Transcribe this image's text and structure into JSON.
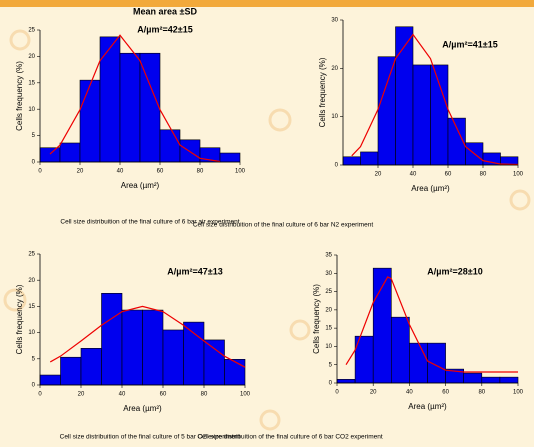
{
  "chart_data": [
    {
      "type": "histogram",
      "title": "Mean area ±SD",
      "annotation": "A/µm²=42±15",
      "x_label": "Area (µm²)",
      "y_label": "Cells frequency (%)",
      "caption": "Cell size distribuition of the final culture of 6 bar air experiment",
      "bins": [
        0,
        10,
        20,
        30,
        40,
        50,
        60,
        70,
        80,
        90,
        100
      ],
      "values": [
        2.7,
        3.6,
        15.5,
        23.7,
        20.6,
        20.6,
        6.1,
        4.2,
        2.7,
        1.7
      ],
      "color": "#0000ee",
      "curve": {
        "color": "#ee0000",
        "x": [
          5,
          10,
          20,
          30,
          40,
          50,
          60,
          70,
          80,
          90
        ],
        "values": [
          1.5,
          3.2,
          9.9,
          19.2,
          24,
          19.2,
          9.9,
          3.2,
          0.7,
          0.1
        ]
      },
      "xlim": [
        0,
        100
      ],
      "xticks": [
        0,
        20,
        40,
        60,
        80,
        100
      ],
      "ylim": [
        0,
        25
      ],
      "yticks": [
        0,
        5,
        10,
        15,
        20,
        25
      ]
    },
    {
      "type": "histogram",
      "annotation": "A/µm²=41±15",
      "x_label": "Area (µm²)",
      "y_label": "Cells frequency (%)",
      "caption": "Cell size distribuition of the final culture of 6 bar N2 experiment",
      "bins": [
        0,
        10,
        20,
        30,
        40,
        50,
        60,
        70,
        80,
        90,
        100
      ],
      "values": [
        1.7,
        2.7,
        22.4,
        28.6,
        20.7,
        20.7,
        9.7,
        4.6,
        2.5,
        1.7
      ],
      "color": "#0000ee",
      "curve": {
        "color": "#ee0000",
        "x": [
          5,
          10,
          20,
          30,
          40,
          50,
          60,
          70,
          80,
          90,
          100
        ],
        "values": [
          1.9,
          3.8,
          11.5,
          22,
          27,
          22,
          11.5,
          3.8,
          0.9,
          0.2,
          0.1
        ]
      },
      "xlim": [
        0,
        100
      ],
      "xticks": [
        20,
        40,
        60,
        80,
        100
      ],
      "ylim": [
        0,
        30
      ],
      "yticks": [
        0,
        10,
        20,
        30
      ]
    },
    {
      "type": "histogram",
      "annotation": "A/µm²=47±13",
      "x_label": "Area (µm²)",
      "y_label": "Cells frequency (%)",
      "caption": "Cell size distribuition of the final culture of 5 bar O2 experiment",
      "bins": [
        0,
        10,
        20,
        30,
        40,
        50,
        60,
        70,
        80,
        90,
        100
      ],
      "values": [
        1.9,
        5.3,
        7.0,
        17.5,
        14.3,
        14.3,
        10.5,
        12.0,
        8.6,
        4.9
      ],
      "color": "#0000ee",
      "curve": {
        "color": "#ee0000",
        "x": [
          5,
          10,
          20,
          30,
          40,
          50,
          60,
          70,
          80,
          90,
          100
        ],
        "values": [
          4.4,
          5.5,
          8.4,
          11.4,
          14,
          15,
          14,
          11.4,
          8.4,
          5.5,
          3.4
        ]
      },
      "xlim": [
        0,
        100
      ],
      "xticks": [
        0,
        20,
        40,
        60,
        80,
        100
      ],
      "ylim": [
        0,
        25
      ],
      "yticks": [
        0,
        5,
        10,
        15,
        20,
        25
      ]
    },
    {
      "type": "histogram",
      "annotation": "A/µm²=28±10",
      "x_label": "Area (µm²)",
      "y_label": "Cells frequency (%)",
      "caption": "Cell size distribuition of the final culture of 6 bar CO2 experiment",
      "bins": [
        0,
        10,
        20,
        30,
        40,
        50,
        60,
        70,
        80,
        90,
        100
      ],
      "values": [
        1,
        12.8,
        31.4,
        18,
        10.9,
        10.9,
        3.8,
        2.7,
        1.6,
        1.6
      ],
      "color": "#0000ee",
      "curve": {
        "color": "#ee0000",
        "x": [
          5,
          10,
          20,
          28,
          30,
          40,
          50,
          60,
          70,
          80,
          90,
          100
        ],
        "values": [
          5,
          9,
          22,
          29,
          28.5,
          16,
          6,
          3.5,
          3,
          3,
          3,
          3
        ]
      },
      "xlim": [
        0,
        100
      ],
      "xticks": [
        0,
        20,
        40,
        60,
        80,
        100
      ],
      "ylim": [
        0,
        35
      ],
      "yticks": [
        0,
        5,
        10,
        15,
        20,
        25,
        30,
        35
      ]
    }
  ]
}
